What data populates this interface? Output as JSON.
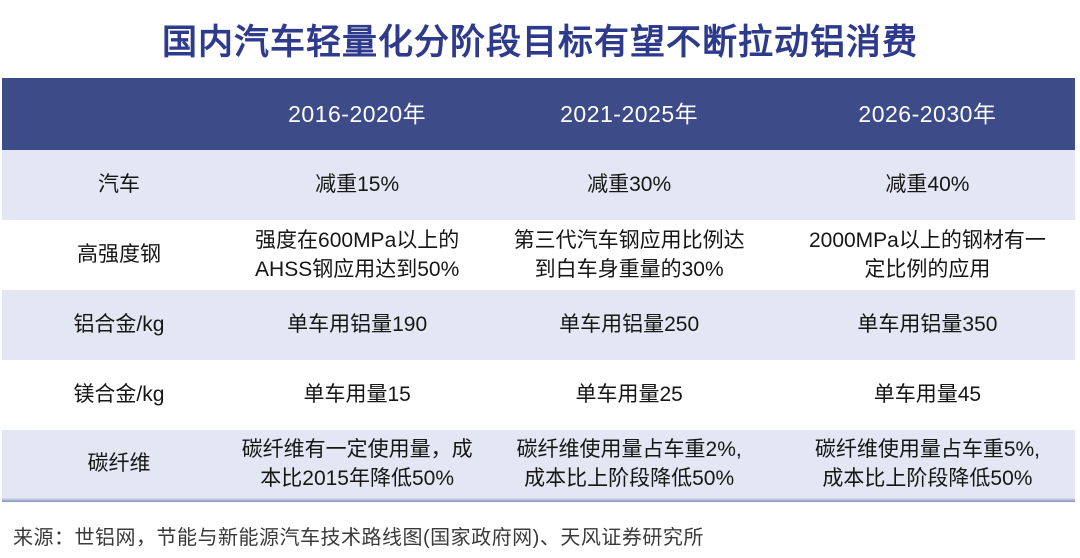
{
  "title": "国内汽车轻量化分阶段目标有望不断拉动铝消费",
  "footer": {
    "source": "来源：世铝网，节能与新能源汽车技术路线图(国家政府网)、天风证券研究所"
  },
  "colors": {
    "title_text": "#2e3a8c",
    "header_bg": "#3d4b88",
    "header_text": "#ffffff",
    "row_alt_bg": "#e4e7f3",
    "row_plain_bg": "#ffffff",
    "body_text": "#161616",
    "bottom_rule": "#8590bf",
    "source_text": "#3a3a3a"
  },
  "chart_data": {
    "type": "table",
    "title": "国内汽车轻量化分阶段目标有望不断拉动铝消费",
    "columns": [
      "",
      "2016-2020年",
      "2021-2025年",
      "2026-2030年"
    ],
    "rows": [
      {
        "label": "汽车",
        "cells": [
          "减重15%",
          "减重30%",
          "减重40%"
        ]
      },
      {
        "label": "高强度钢",
        "cells": [
          "强度在600MPa以上的\nAHSS钢应用达到50%",
          "第三代汽车钢应用比例达\n到白车身重量的30%",
          "2000MPa以上的钢材有一\n定比例的应用"
        ]
      },
      {
        "label": "铝合金/kg",
        "cells": [
          "单车用铝量190",
          "单车用铝量250",
          "单车用铝量350"
        ]
      },
      {
        "label": "镁合金/kg",
        "cells": [
          "单车用量15",
          "单车用量25",
          "单车用量45"
        ]
      },
      {
        "label": "碳纤维",
        "cells": [
          "碳纤维有一定使用量，成\n本比2015年降低50%",
          "碳纤维使用量占车重2%,\n成本比上阶段降低50%",
          "碳纤维使用量占车重5%,\n成本比上阶段降低50%"
        ]
      }
    ],
    "numeric_summary": {
      "periods": [
        "2016-2020",
        "2021-2025",
        "2026-2030"
      ],
      "vehicle_weight_reduction_pct": [
        15,
        30,
        40
      ],
      "aluminum_per_vehicle_kg": [
        190,
        250,
        350
      ],
      "magnesium_per_vehicle_kg": [
        15,
        25,
        45
      ]
    },
    "layout": {
      "header_position": "top",
      "row_striping": "alternating",
      "text_align": "center"
    }
  }
}
